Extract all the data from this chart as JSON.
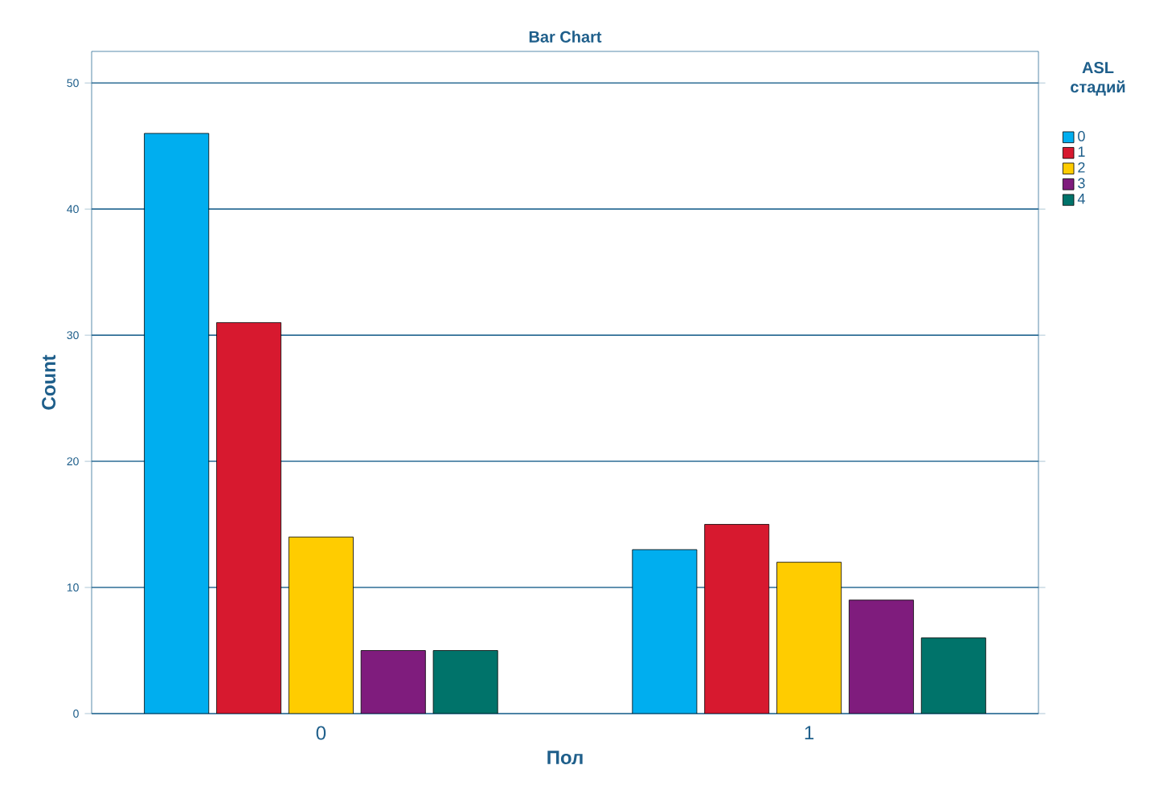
{
  "chart_data": {
    "type": "bar",
    "title": "Bar Chart",
    "xlabel": "Пол",
    "ylabel": "Count",
    "legend_title": "ASL стадий",
    "categories": [
      "0",
      "1"
    ],
    "series": [
      {
        "name": "0",
        "color": "#00aeef",
        "values": [
          46,
          13
        ]
      },
      {
        "name": "1",
        "color": "#d7192f",
        "values": [
          31,
          15
        ]
      },
      {
        "name": "2",
        "color": "#ffcc00",
        "values": [
          14,
          12
        ]
      },
      {
        "name": "3",
        "color": "#7f1c7d",
        "values": [
          5,
          9
        ]
      },
      {
        "name": "4",
        "color": "#00736a",
        "values": [
          5,
          6
        ]
      }
    ],
    "ylim": [
      0,
      52.5
    ],
    "yticks": [
      0,
      10,
      20,
      30,
      40,
      50
    ],
    "grid": "y",
    "legend": "right"
  }
}
